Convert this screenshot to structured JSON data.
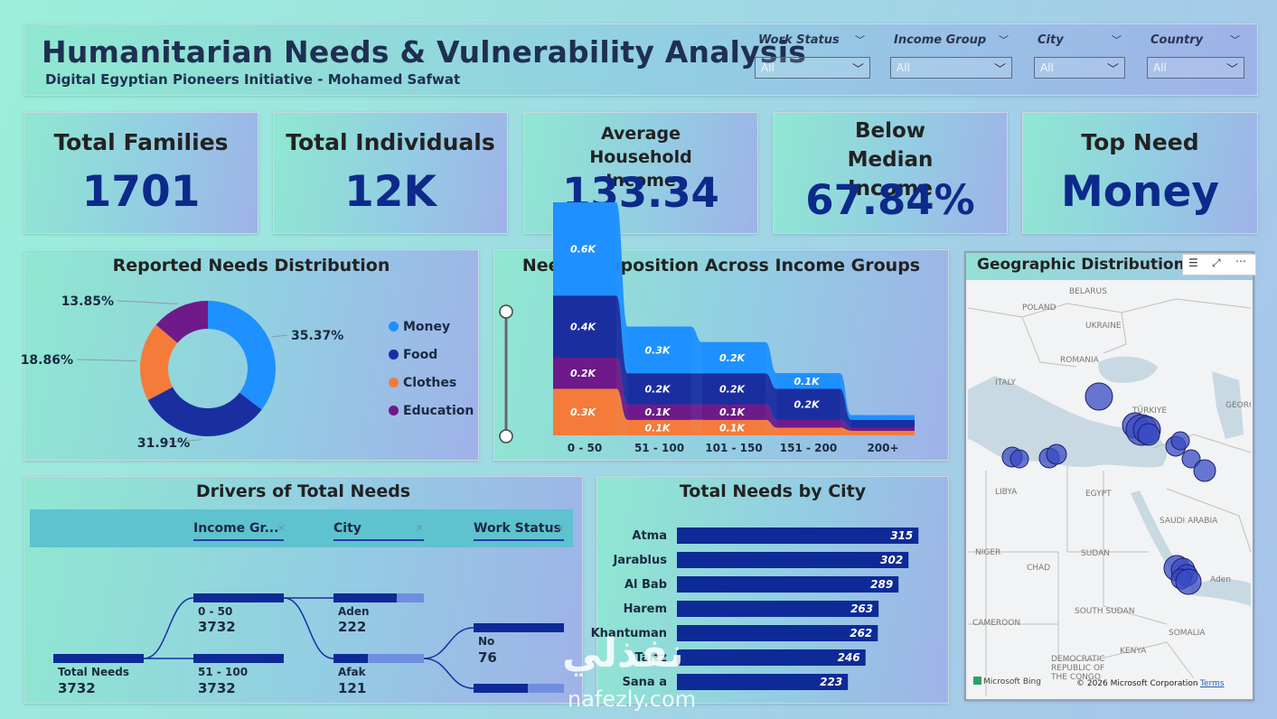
{
  "header": {
    "title": "Humanitarian Needs & Vulnerability Analysis",
    "subtitle": "Digital Egyptian Pioneers Initiative - Mohamed Safwat"
  },
  "slicers": [
    {
      "label": "Work Status",
      "value": "All"
    },
    {
      "label": "Income Group",
      "value": "All"
    },
    {
      "label": "City",
      "value": "All"
    },
    {
      "label": "Country",
      "value": "All"
    }
  ],
  "kpis": [
    {
      "title": "Total Families",
      "value": "1701"
    },
    {
      "title": "Total Individuals",
      "value": "12K"
    },
    {
      "title": "Average Household Income",
      "value": "133.34"
    },
    {
      "title": "Below Median Income",
      "value": "67.84%"
    },
    {
      "title": "Top Need",
      "value": "Money"
    }
  ],
  "colors": {
    "money": "#1e90ff",
    "food": "#1a2ea0",
    "clothes": "#f47b3a",
    "education": "#6e1a8a",
    "bar": "#0e2a96",
    "bubble": "#3a4bc4"
  },
  "chart_data": [
    {
      "type": "pie",
      "title": "Reported Needs Distribution",
      "categories": [
        "Money",
        "Food",
        "Clothes",
        "Education"
      ],
      "values": [
        35.37,
        31.91,
        18.86,
        13.85
      ],
      "labels": [
        "35.37%",
        "31.91%",
        "18.86%",
        "13.85%"
      ],
      "legend": "right"
    },
    {
      "type": "area",
      "title": "Need Composition Across Income Groups",
      "categories": [
        "0 - 50",
        "51 - 100",
        "101 - 150",
        "151 - 200",
        "200+"
      ],
      "series": [
        {
          "name": "Clothes",
          "values": [
            0.3,
            0.1,
            0.1,
            0.05,
            0.03
          ]
        },
        {
          "name": "Education",
          "values": [
            0.2,
            0.1,
            0.1,
            0.05,
            0.02
          ]
        },
        {
          "name": "Food",
          "values": [
            0.4,
            0.2,
            0.2,
            0.2,
            0.05
          ]
        },
        {
          "name": "Money",
          "values": [
            0.6,
            0.3,
            0.2,
            0.1,
            0.03
          ]
        }
      ],
      "data_labels": [
        [
          "0.3K",
          "0.1K",
          "0.1K",
          "",
          ""
        ],
        [
          "0.2K",
          "0.1K",
          "0.1K",
          "",
          ""
        ],
        [
          "0.4K",
          "0.2K",
          "0.2K",
          "0.2K",
          ""
        ],
        [
          "0.6K",
          "0.3K",
          "0.2K",
          "0.1K",
          ""
        ]
      ]
    },
    {
      "type": "bar",
      "title": "Total Needs by City",
      "categories": [
        "Atma",
        "Jarablus",
        "Al Bab",
        "Harem",
        "Khantuman",
        "Taizz",
        "Sana a"
      ],
      "values": [
        315,
        302,
        289,
        263,
        262,
        246,
        223
      ],
      "xlim": [
        0,
        330
      ]
    }
  ],
  "tree": {
    "title": "Drivers of Total Needs",
    "columns": [
      "Income Gr...",
      "City",
      "Work Status"
    ],
    "root": {
      "label": "Total Needs",
      "value": "3732"
    },
    "level1": [
      {
        "label": "0 - 50",
        "value": "3732",
        "fill": 1.0
      },
      {
        "label": "51 - 100",
        "value": "3732",
        "fill": 1.0
      }
    ],
    "level2": [
      {
        "label": "Aden",
        "value": "222",
        "fill": 0.7
      },
      {
        "label": "Afak",
        "value": "121",
        "fill": 0.38
      }
    ],
    "level3": [
      {
        "label": "No",
        "value": "76",
        "fill": 1.0
      },
      {
        "label": "",
        "value": "",
        "fill": 0.6
      }
    ]
  },
  "map": {
    "title": "Geographic Distribution o",
    "labels": [
      "BELARUS",
      "POLAND",
      "UKRAINE",
      "ROMANIA",
      "ITALY",
      "TÜRKIYE",
      "GEORGIA",
      "LIBYA",
      "EGYPT",
      "SAUDI ARABIA",
      "NIGER",
      "CHAD",
      "SUDAN",
      "SOUTH SUDAN",
      "CAMEROON",
      "DEMOCRATIC REPUBLIC OF THE CONGO",
      "KENYA",
      "SOMALIA",
      "Aden"
    ],
    "attribution": "Microsoft Bing",
    "copyright": "© 2026 Microsoft Corporation",
    "terms": "Terms"
  },
  "watermark": {
    "arabic": "نفذلي",
    "latin": "nafezly.com"
  }
}
